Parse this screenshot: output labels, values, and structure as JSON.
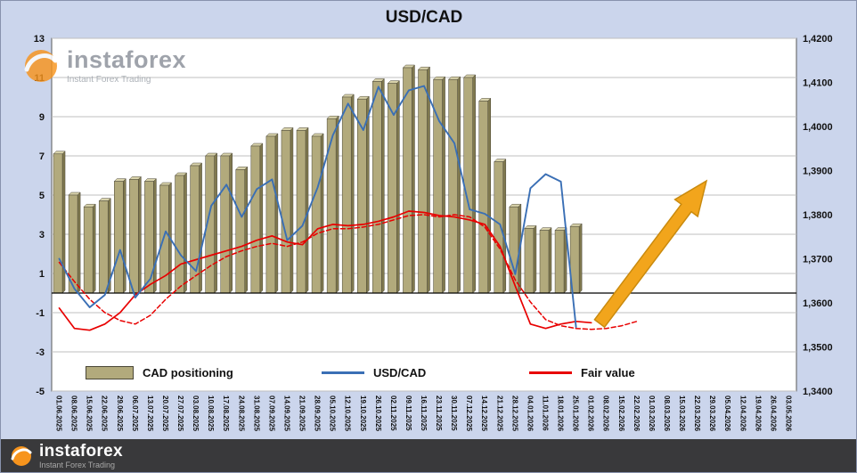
{
  "title": "USD/CAD",
  "watermark": {
    "brand": "instaforex",
    "tagline": "Instant Forex Trading"
  },
  "footer": {
    "brand": "instaforex",
    "tagline": "Instant Forex Trading"
  },
  "legend": [
    {
      "label": "CAD positioning"
    },
    {
      "label": "USD/CAD"
    },
    {
      "label": "Fair value"
    }
  ],
  "colors": {
    "background": "#cbd5ec",
    "plot_background": "#ffffff",
    "bar_fill": "#b2aa7c",
    "bar_top": "#d9d3ab",
    "bar_side": "#80794f",
    "usdcad_line": "#3a6fb5",
    "fair_value_line": "#e80000",
    "arrow": "#f2a51c",
    "footer_background": "#39393b",
    "logo_orange": "#f7941d"
  },
  "chart_data": {
    "type": "mixed",
    "title": "USD/CAD",
    "legend_position": "bottom-inside",
    "grid": true,
    "categories": [
      "01.06.2025",
      "08.06.2025",
      "15.06.2025",
      "22.06.2025",
      "29.06.2025",
      "06.07.2025",
      "13.07.2025",
      "20.07.2025",
      "27.07.2025",
      "03.08.2025",
      "10.08.2025",
      "17.08.2025",
      "24.08.2025",
      "31.08.2025",
      "07.09.2025",
      "14.09.2025",
      "21.09.2025",
      "28.09.2025",
      "05.10.2025",
      "12.10.2025",
      "19.10.2025",
      "26.10.2025",
      "02.11.2025",
      "09.11.2025",
      "16.11.2025",
      "23.11.2025",
      "30.11.2025",
      "07.12.2025",
      "14.12.2025",
      "21.12.2025",
      "28.12.2025",
      "04.01.2026",
      "11.01.2026",
      "18.01.2026",
      "25.01.2026",
      "01.02.2026",
      "08.02.2026",
      "15.02.2026",
      "22.02.2026",
      "01.03.2026",
      "08.03.2026",
      "15.03.2026",
      "22.03.2026",
      "29.03.2026",
      "05.04.2026",
      "12.04.2026",
      "19.04.2026",
      "26.04.2026",
      "03.05.2026"
    ],
    "left_axis": {
      "min": -5,
      "max": 13,
      "ticks": [
        13,
        11,
        9,
        7,
        5,
        3,
        1,
        -1,
        -3,
        -5
      ]
    },
    "right_axis": {
      "min": 1.34,
      "max": 1.42,
      "tick_labels": [
        "1,4200",
        "1,4100",
        "1,4000",
        "1,3900",
        "1,3800",
        "1,3700",
        "1,3600",
        "1,3500",
        "1,3400"
      ]
    },
    "series": [
      {
        "name": "CAD positioning",
        "type": "bar",
        "axis": "left",
        "color": "#b2aa7c",
        "values": [
          7.1,
          5,
          4.4,
          4.7,
          5.7,
          5.8,
          5.7,
          5.5,
          6,
          6.5,
          7,
          7,
          6.3,
          7.5,
          8,
          8.3,
          8.3,
          8,
          8.9,
          10,
          9.9,
          10.8,
          10.7,
          11.5,
          11.4,
          10.9,
          10.9,
          11,
          9.8,
          6.7,
          4.4,
          3.3,
          3.2,
          3.2,
          3.4,
          null,
          null,
          null,
          null,
          null,
          null,
          null,
          null,
          null,
          null,
          null,
          null,
          null,
          null
        ]
      },
      {
        "name": "USD/CAD",
        "type": "line",
        "axis": "right",
        "color": "#3a6fb5",
        "values": [
          1.37,
          1.3632,
          1.359,
          1.3618,
          1.372,
          1.3612,
          1.3655,
          1.3762,
          1.3708,
          1.3672,
          1.382,
          1.3868,
          1.3795,
          1.3858,
          1.388,
          1.3742,
          1.3775,
          1.3862,
          1.398,
          1.4052,
          1.3992,
          1.409,
          1.4026,
          1.4082,
          1.4092,
          1.4012,
          1.3962,
          1.3812,
          1.3802,
          1.3778,
          1.3665,
          1.386,
          1.3892,
          1.3875,
          1.3545,
          null,
          null,
          null,
          null,
          null,
          null,
          null,
          null,
          null,
          null,
          null,
          null,
          null,
          null
        ]
      },
      {
        "name": "Fair value",
        "type": "line",
        "axis": "right",
        "color": "#e80000",
        "values": [
          1.3588,
          1.3542,
          1.3538,
          1.3552,
          1.3578,
          1.3618,
          1.3642,
          1.3662,
          1.3688,
          1.3698,
          1.3708,
          1.3718,
          1.3728,
          1.3742,
          1.3752,
          1.3738,
          1.3732,
          1.3768,
          1.3778,
          1.3775,
          1.3778,
          1.3785,
          1.3795,
          1.3808,
          1.3805,
          1.3798,
          1.3795,
          1.3788,
          1.3778,
          1.3728,
          1.3638,
          1.3552,
          1.3542,
          1.3552,
          1.3558,
          1.3555,
          null,
          null,
          null,
          null,
          null,
          null,
          null,
          null,
          null,
          null,
          null,
          null,
          null
        ]
      },
      {
        "name": "Fair value (dashed)",
        "type": "line",
        "dash": true,
        "axis": "right",
        "color": "#e80000",
        "values": [
          1.3692,
          1.3648,
          1.3608,
          1.3578,
          1.356,
          1.3552,
          1.3572,
          1.3608,
          1.3638,
          1.3662,
          1.3685,
          1.3705,
          1.3718,
          1.3728,
          1.3735,
          1.3728,
          1.3738,
          1.3758,
          1.3768,
          1.3768,
          1.3772,
          1.3778,
          1.3788,
          1.3798,
          1.38,
          1.3795,
          1.38,
          1.3795,
          1.3772,
          1.3722,
          1.3652,
          1.3602,
          1.3562,
          1.3548,
          1.3542,
          1.354,
          1.3542,
          1.3548,
          1.3558,
          null,
          null,
          null,
          null,
          null,
          null,
          null,
          null,
          null,
          null
        ]
      }
    ],
    "annotations": [
      {
        "type": "arrow",
        "direction": "up-right",
        "color": "#f2a51c"
      }
    ]
  }
}
